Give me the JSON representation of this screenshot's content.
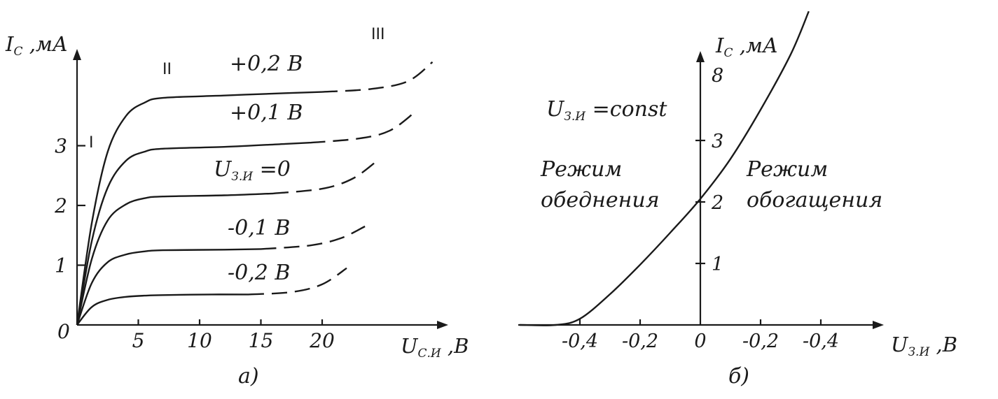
{
  "chart_data": [
    {
      "type": "line",
      "panel_label": "а)",
      "ylabel": "I",
      "ylabel_sub": "С",
      "ylabel_unit": " ,мА",
      "xlabel": "U",
      "xlabel_sub": "С.И",
      "xlabel_unit": " ,В",
      "origin_label": "0",
      "x_ticks": [
        "5",
        "10",
        "15",
        "20"
      ],
      "y_ticks": [
        "1",
        "2",
        "3"
      ],
      "xlim": [
        0,
        30
      ],
      "ylim": [
        0,
        4.6
      ],
      "region_labels": [
        "I",
        "II",
        "III"
      ],
      "series": [
        {
          "name": "+0,2 B",
          "sat": 3.8,
          "solid": [
            [
              0,
              0
            ],
            [
              1.2,
              1.7
            ],
            [
              2.5,
              2.9
            ],
            [
              4,
              3.5
            ],
            [
              5.5,
              3.72
            ],
            [
              7,
              3.8
            ],
            [
              12,
              3.84
            ],
            [
              17,
              3.88
            ],
            [
              20,
              3.9
            ]
          ],
          "dashed": [
            [
              20,
              3.9
            ],
            [
              24,
              3.95
            ],
            [
              27,
              4.08
            ],
            [
              29,
              4.4
            ]
          ]
        },
        {
          "name": "+0,1 B",
          "sat": 2.95,
          "solid": [
            [
              0,
              0
            ],
            [
              1.2,
              1.4
            ],
            [
              2.5,
              2.3
            ],
            [
              4,
              2.75
            ],
            [
              5.5,
              2.9
            ],
            [
              7,
              2.95
            ],
            [
              12,
              2.98
            ],
            [
              17,
              3.03
            ],
            [
              19,
              3.05
            ]
          ],
          "dashed": [
            [
              19,
              3.05
            ],
            [
              23,
              3.12
            ],
            [
              25.5,
              3.25
            ],
            [
              27.5,
              3.55
            ]
          ]
        },
        {
          "name": "U З.И =0",
          "sat": 2.15,
          "solid": [
            [
              0,
              0
            ],
            [
              1.2,
              1.1
            ],
            [
              2.5,
              1.75
            ],
            [
              4,
              2.02
            ],
            [
              5.5,
              2.12
            ],
            [
              7,
              2.15
            ],
            [
              12,
              2.17
            ],
            [
              16,
              2.2
            ]
          ],
          "dashed": [
            [
              16,
              2.2
            ],
            [
              20,
              2.28
            ],
            [
              22.5,
              2.45
            ],
            [
              24.5,
              2.75
            ]
          ]
        },
        {
          "name": "-0,1 B",
          "sat": 1.25,
          "solid": [
            [
              0,
              0
            ],
            [
              1.2,
              0.7
            ],
            [
              2.5,
              1.05
            ],
            [
              4,
              1.18
            ],
            [
              5.5,
              1.23
            ],
            [
              7,
              1.25
            ],
            [
              12,
              1.26
            ],
            [
              15,
              1.27
            ]
          ],
          "dashed": [
            [
              15,
              1.27
            ],
            [
              19,
              1.33
            ],
            [
              21.5,
              1.45
            ],
            [
              23.5,
              1.65
            ]
          ]
        },
        {
          "name": "-0,2 B",
          "sat": 0.5,
          "solid": [
            [
              0,
              0
            ],
            [
              1.2,
              0.3
            ],
            [
              2.5,
              0.42
            ],
            [
              4,
              0.47
            ],
            [
              5.5,
              0.49
            ],
            [
              7,
              0.5
            ],
            [
              11,
              0.51
            ],
            [
              14,
              0.51
            ]
          ],
          "dashed": [
            [
              14,
              0.51
            ],
            [
              17.5,
              0.55
            ],
            [
              20,
              0.68
            ],
            [
              22,
              0.95
            ]
          ]
        }
      ]
    },
    {
      "type": "line",
      "panel_label": "б)",
      "ylabel": "I",
      "ylabel_sub": "С",
      "ylabel_unit": " ,мА",
      "xlabel": "U",
      "xlabel_sub": "З.И",
      "xlabel_unit": " ,В",
      "x_ticks": [
        "-0,4",
        "-0,2",
        "0",
        "-0,2",
        "-0,4"
      ],
      "y_ticks": [
        "1",
        "2",
        "3",
        "8"
      ],
      "condition": {
        "main": "U",
        "sub": "З.И",
        "rest": " =const"
      },
      "depletion_label": [
        "Режим",
        "обеднения"
      ],
      "enhancement_label": [
        "Режим",
        "обогащения"
      ],
      "series": [
        {
          "name": "",
          "points": [
            [
              -0.6,
              0
            ],
            [
              -0.48,
              0
            ],
            [
              -0.4,
              0.1
            ],
            [
              -0.3,
              0.5
            ],
            [
              -0.2,
              0.98
            ],
            [
              -0.1,
              1.5
            ],
            [
              0,
              2.05
            ],
            [
              0.1,
              2.7
            ],
            [
              0.2,
              3.5
            ],
            [
              0.3,
              4.4
            ],
            [
              0.36,
              5.1
            ]
          ]
        }
      ]
    }
  ]
}
